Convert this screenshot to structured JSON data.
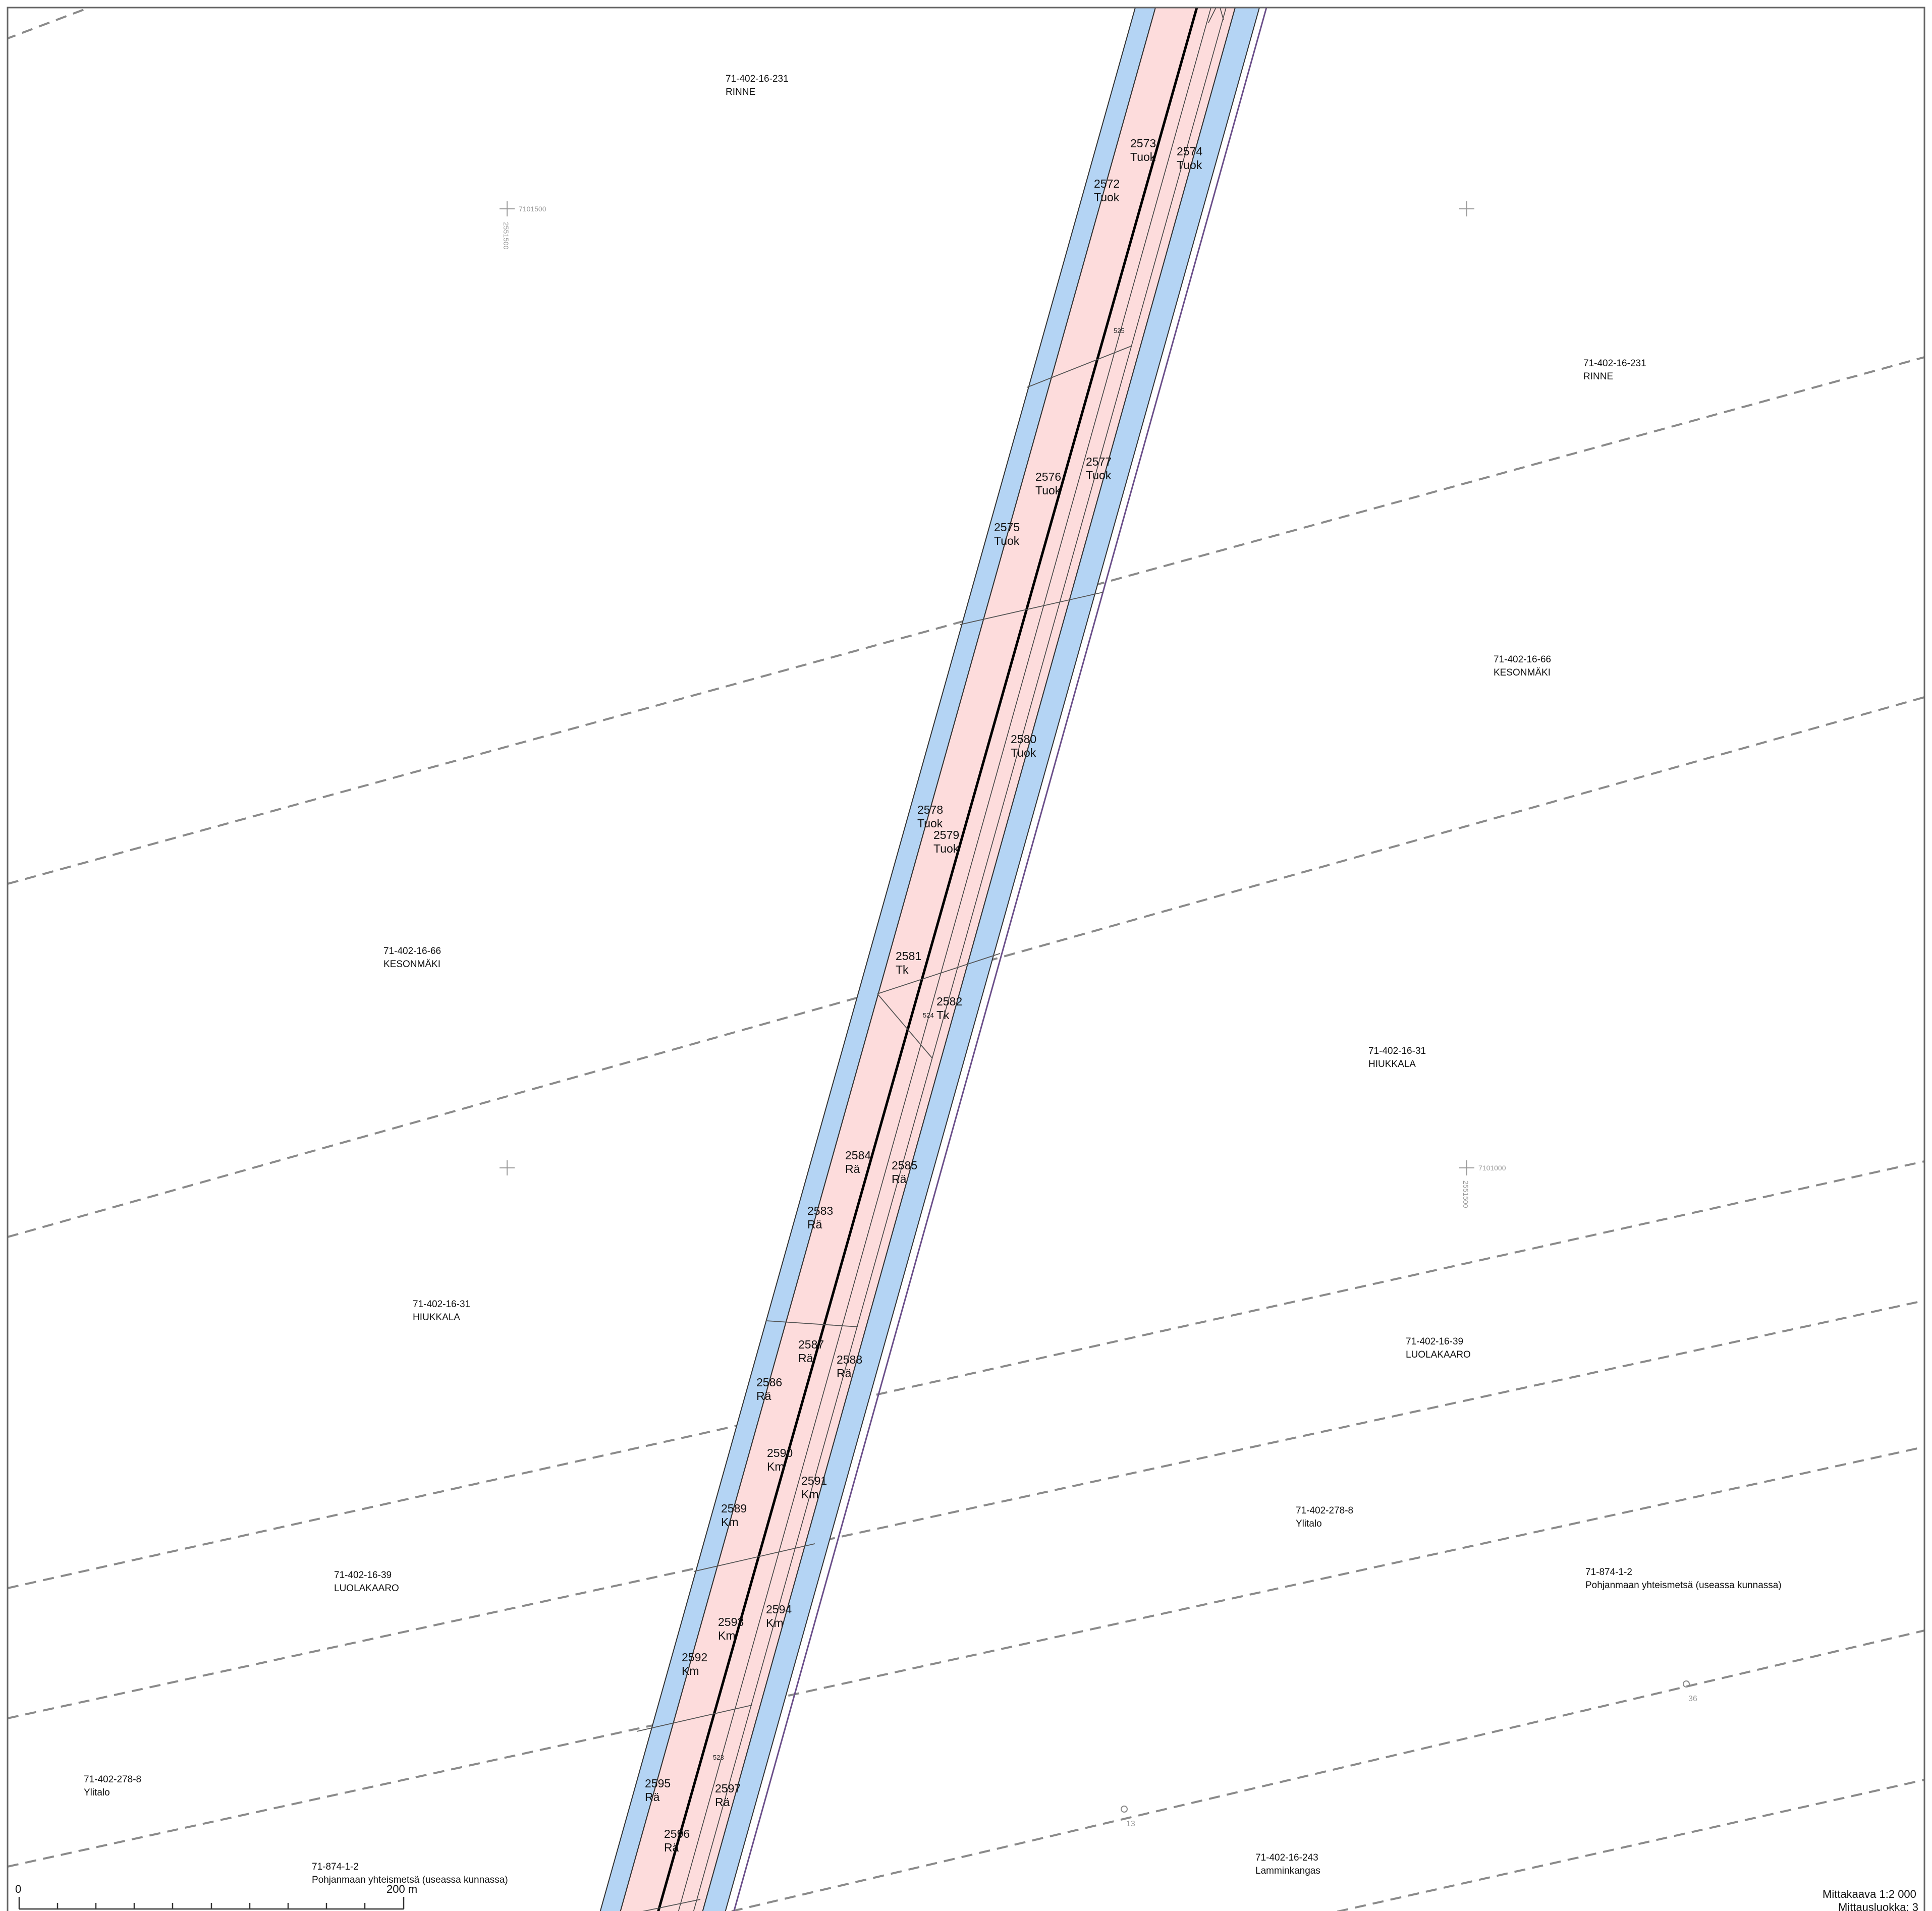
{
  "properties": [
    {
      "id": "71-402-16-231",
      "name": "RINNE"
    },
    {
      "id": "71-402-16-231",
      "name": "RINNE"
    },
    {
      "id": "71-402-16-66",
      "name": "KESONMÄKI"
    },
    {
      "id": "71-402-16-66",
      "name": "KESONMÄKI"
    },
    {
      "id": "71-402-16-31",
      "name": "HIUKKALA"
    },
    {
      "id": "71-402-16-31",
      "name": "HIUKKALA"
    },
    {
      "id": "71-402-16-39",
      "name": "LUOLAKAARO"
    },
    {
      "id": "71-402-16-39",
      "name": "LUOLAKAARO"
    },
    {
      "id": "71-402-278-8",
      "name": "Ylitalo"
    },
    {
      "id": "71-402-278-8",
      "name": "Ylitalo"
    },
    {
      "id": "71-874-1-2",
      "name": "Pohjanmaan yhteismetsä (useassa kunnassa)"
    },
    {
      "id": "71-874-1-2",
      "name": "Pohjanmaan yhteismetsä (useassa kunnassa)"
    },
    {
      "id": "71-402-16-243",
      "name": "Lamminkangas"
    }
  ],
  "parcels": [
    {
      "num": "2572",
      "type": "Tuok"
    },
    {
      "num": "2573",
      "type": "Tuok"
    },
    {
      "num": "2574",
      "type": "Tuok"
    },
    {
      "num": "2575",
      "type": "Tuok"
    },
    {
      "num": "2576",
      "type": "Tuok"
    },
    {
      "num": "2577",
      "type": "Tuok"
    },
    {
      "num": "2578",
      "type": "Tuok"
    },
    {
      "num": "2579",
      "type": "Tuok"
    },
    {
      "num": "2580",
      "type": "Tuok"
    },
    {
      "num": "2581",
      "type": "Tk"
    },
    {
      "num": "2582",
      "type": "Tk"
    },
    {
      "num": "2583",
      "type": "Rä"
    },
    {
      "num": "2584",
      "type": "Rä"
    },
    {
      "num": "2585",
      "type": "Rä"
    },
    {
      "num": "2586",
      "type": "Rä"
    },
    {
      "num": "2587",
      "type": "Rä"
    },
    {
      "num": "2588",
      "type": "Rä"
    },
    {
      "num": "2589",
      "type": "Km"
    },
    {
      "num": "2590",
      "type": "Km"
    },
    {
      "num": "2591",
      "type": "Km"
    },
    {
      "num": "2592",
      "type": "Km"
    },
    {
      "num": "2593",
      "type": "Km"
    },
    {
      "num": "2594",
      "type": "Km"
    },
    {
      "num": "2595",
      "type": "Rä"
    },
    {
      "num": "2596",
      "type": "Rä"
    },
    {
      "num": "2597",
      "type": "Rä"
    }
  ],
  "tower_numbers": [
    "525",
    "524",
    "523"
  ],
  "grid": {
    "northing_top": "7101500",
    "easting_left": "2551500",
    "northing_mid": "7101000",
    "easting_right": "2551500"
  },
  "markers": [
    "36",
    "13"
  ],
  "scale_bar": {
    "start": "0",
    "end": "200 m"
  },
  "footer": {
    "scale": "Mittakaava 1:2 000",
    "class": "Mittausluokka: 3"
  },
  "colors": {
    "corridor_outer": "#b4d4f4",
    "corridor_inner": "#fddcdc",
    "boundary": "#6b4f8a"
  }
}
